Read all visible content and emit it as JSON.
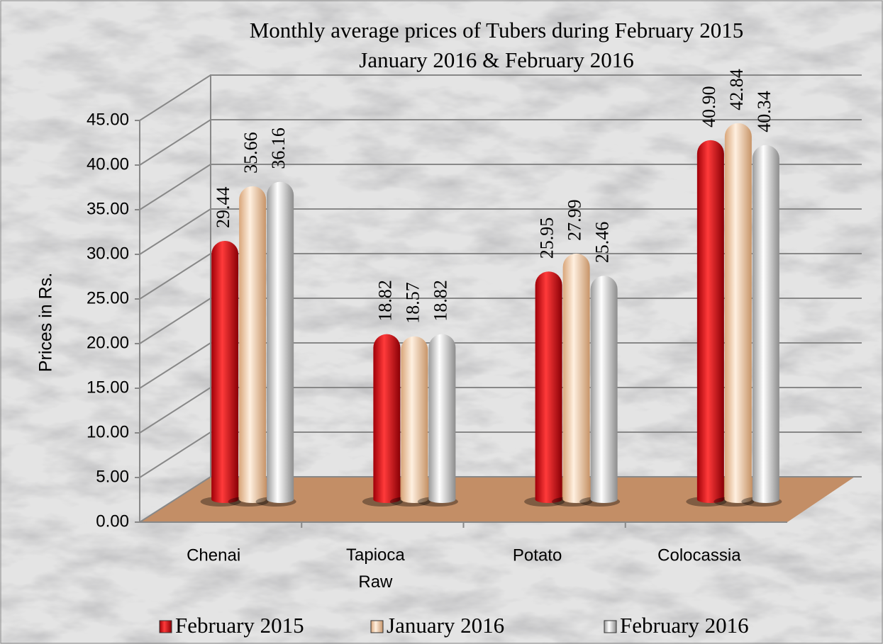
{
  "chart_data": {
    "type": "bar",
    "title": [
      "Monthly  average prices of Tubers during  February 2015",
      "January 2016 & February 2016"
    ],
    "y_label": "Prices in Rs.",
    "categories": [
      "Chenai",
      "Tapioca Raw",
      "Potato",
      "Colocassia"
    ],
    "series": [
      {
        "name": "February 2015",
        "color": "#e3141b",
        "values": [
          29.44,
          18.82,
          25.95,
          40.9
        ],
        "value_labels": [
          "29.44",
          "18.82",
          "25.95",
          "40.90"
        ]
      },
      {
        "name": "January 2016",
        "color": "#f7cfa5",
        "values": [
          35.66,
          18.57,
          27.99,
          42.84
        ],
        "value_labels": [
          "35.66",
          "18.57",
          "27.99",
          "42.84"
        ]
      },
      {
        "name": "February 2016",
        "color": "#e6e6e6",
        "values": [
          36.16,
          18.82,
          25.46,
          40.34
        ],
        "value_labels": [
          "36.16",
          "18.82",
          "25.46",
          "40.34"
        ]
      }
    ],
    "ylim": [
      0,
      45
    ],
    "yticks": [
      {
        "value": 0,
        "label": "0.00"
      },
      {
        "value": 5,
        "label": "5.00"
      },
      {
        "value": 10,
        "label": "10.00"
      },
      {
        "value": 15,
        "label": "15.00"
      },
      {
        "value": 20,
        "label": "20.00"
      },
      {
        "value": 25,
        "label": "25.00"
      },
      {
        "value": 30,
        "label": "30.00"
      },
      {
        "value": 35,
        "label": "35.00"
      },
      {
        "value": 40,
        "label": "40.00"
      },
      {
        "value": 45,
        "label": "45.00"
      }
    ],
    "grid": true,
    "legend": "bottom"
  }
}
